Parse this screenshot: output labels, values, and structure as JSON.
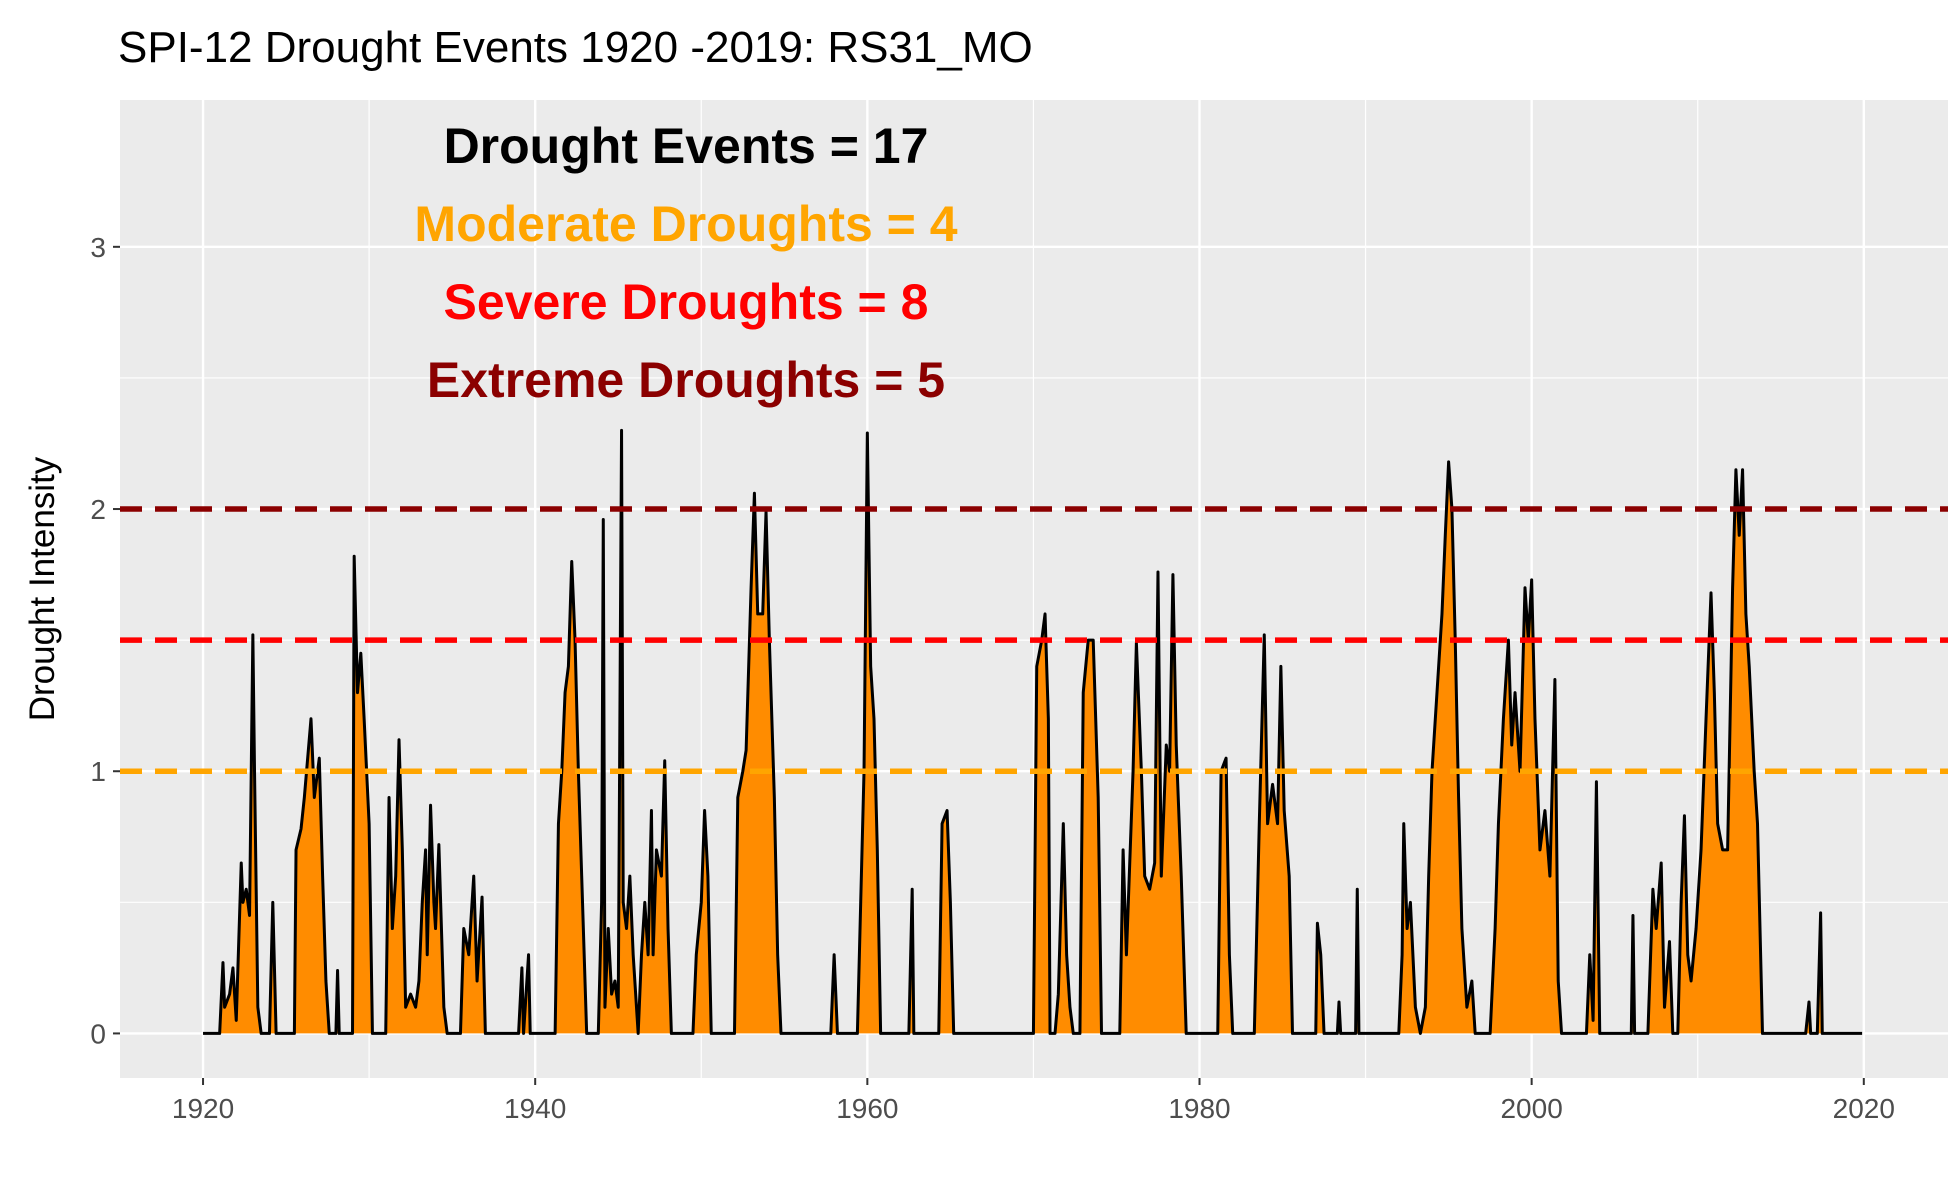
{
  "chart_data": {
    "type": "area",
    "title": "SPI-12 Drought Events 1920 -2019: RS31_MO",
    "y_label": "Drought Intensity",
    "annotations": [
      {
        "text": "Drought Events = 17",
        "color": "#000000"
      },
      {
        "text": "Moderate Droughts = 4",
        "color": "#ffa500"
      },
      {
        "text": "Severe Droughts = 8",
        "color": "#ff0000"
      },
      {
        "text": "Extreme Droughts = 5",
        "color": "#8b0000"
      }
    ],
    "thresholds": [
      {
        "value": 1,
        "color": "#ffa500"
      },
      {
        "value": 1.5,
        "color": "#ff0000"
      },
      {
        "value": 2,
        "color": "#8b0000"
      }
    ],
    "xlim": [
      1915,
      2025.07
    ],
    "ylim": [
      -0.17,
      3.56
    ],
    "xticks": [
      1920,
      1940,
      1960,
      1980,
      2000,
      2020
    ],
    "yticks": [
      0,
      1,
      2,
      3
    ],
    "xminorticks": [
      1930,
      1950,
      1970,
      1990,
      2010
    ],
    "yminorticks": [
      0.5,
      1.5,
      2.5
    ],
    "grid": true,
    "x": [
      1920.0,
      1921.0,
      1921.2,
      1921.3,
      1921.6,
      1921.8,
      1922.0,
      1922.1,
      1922.3,
      1922.4,
      1922.6,
      1922.8,
      1923.0,
      1923.1,
      1923.3,
      1923.5,
      1924.0,
      1924.2,
      1924.4,
      1925.5,
      1925.6,
      1925.9,
      1926.1,
      1926.3,
      1926.5,
      1926.7,
      1927.0,
      1927.2,
      1927.4,
      1927.6,
      1928.0,
      1928.1,
      1928.2,
      1929.0,
      1929.1,
      1929.3,
      1929.5,
      1929.7,
      1930.0,
      1930.2,
      1931.0,
      1931.2,
      1931.4,
      1931.6,
      1931.8,
      1932.0,
      1932.2,
      1932.5,
      1932.8,
      1933.0,
      1933.2,
      1933.4,
      1933.5,
      1933.7,
      1933.9,
      1934.0,
      1934.2,
      1934.5,
      1934.7,
      1935.5,
      1935.7,
      1936.0,
      1936.3,
      1936.5,
      1936.8,
      1937.0,
      1939.0,
      1939.2,
      1939.3,
      1939.6,
      1939.7,
      1941.2,
      1941.4,
      1941.6,
      1941.8,
      1942.0,
      1942.2,
      1942.4,
      1942.6,
      1942.8,
      1943.1,
      1943.8,
      1944.0,
      1944.1,
      1944.2,
      1944.4,
      1944.6,
      1944.8,
      1945.0,
      1945.2,
      1945.3,
      1945.5,
      1945.7,
      1945.9,
      1946.2,
      1946.4,
      1946.6,
      1946.8,
      1947.0,
      1947.1,
      1947.3,
      1947.6,
      1947.8,
      1948.0,
      1948.2,
      1949.5,
      1949.7,
      1950.0,
      1950.2,
      1950.4,
      1950.6,
      1952.0,
      1952.2,
      1952.5,
      1952.7,
      1953.0,
      1953.2,
      1953.4,
      1953.7,
      1953.9,
      1954.1,
      1954.4,
      1954.6,
      1954.8,
      1957.8,
      1958.0,
      1958.2,
      1959.4,
      1959.6,
      1959.8,
      1960.0,
      1960.2,
      1960.4,
      1960.6,
      1960.8,
      1962.5,
      1962.7,
      1962.8,
      1964.3,
      1964.5,
      1964.8,
      1965.0,
      1965.2,
      1970.0,
      1970.2,
      1970.5,
      1970.7,
      1970.9,
      1971.0,
      1971.3,
      1971.5,
      1971.8,
      1972.0,
      1972.2,
      1972.4,
      1972.8,
      1973.0,
      1973.3,
      1973.6,
      1973.9,
      1974.1,
      1975.2,
      1975.4,
      1975.6,
      1976.0,
      1976.2,
      1976.5,
      1976.7,
      1977.0,
      1977.3,
      1977.5,
      1977.7,
      1978.0,
      1978.2,
      1978.4,
      1978.6,
      1978.9,
      1979.2,
      1981.1,
      1981.3,
      1981.6,
      1981.8,
      1982.0,
      1983.3,
      1983.6,
      1983.9,
      1984.1,
      1984.4,
      1984.7,
      1984.9,
      1985.1,
      1985.4,
      1985.6,
      1987.0,
      1987.1,
      1987.3,
      1987.5,
      1988.3,
      1988.4,
      1988.5,
      1989.4,
      1989.5,
      1989.6,
      1992.0,
      1992.2,
      1992.3,
      1992.5,
      1992.7,
      1993.0,
      1993.3,
      1993.6,
      1993.8,
      1994.0,
      1994.3,
      1994.6,
      1994.8,
      1995.0,
      1995.2,
      1995.4,
      1995.6,
      1995.8,
      1996.1,
      1996.4,
      1996.6,
      1997.5,
      1997.8,
      1998.0,
      1998.3,
      1998.6,
      1998.8,
      1999.0,
      1999.3,
      1999.6,
      1999.8,
      2000.0,
      2000.2,
      2000.5,
      2000.8,
      2001.1,
      2001.4,
      2001.6,
      2001.8,
      2003.3,
      2003.5,
      2003.7,
      2003.9,
      2004.1,
      2006.0,
      2006.1,
      2006.2,
      2007.0,
      2007.3,
      2007.5,
      2007.8,
      2008.0,
      2008.3,
      2008.5,
      2008.8,
      2009.0,
      2009.2,
      2009.4,
      2009.6,
      2009.9,
      2010.2,
      2010.5,
      2010.8,
      2011.0,
      2011.2,
      2011.5,
      2011.8,
      2012.1,
      2012.3,
      2012.5,
      2012.7,
      2012.9,
      2013.1,
      2013.4,
      2013.6,
      2013.9,
      2016.5,
      2016.7,
      2016.8,
      2017.2,
      2017.4,
      2017.5,
      2019.9
    ],
    "series": [
      {
        "fill": "#ff8c00",
        "color": "#000000",
        "values": [
          0,
          0,
          0.27,
          0.1,
          0.15,
          0.25,
          0.05,
          0.25,
          0.65,
          0.5,
          0.55,
          0.45,
          1.52,
          1.0,
          0.1,
          0,
          0,
          0.5,
          0,
          0,
          0.7,
          0.78,
          0.9,
          1.05,
          1.2,
          0.9,
          1.05,
          0.6,
          0.2,
          0,
          0,
          0.24,
          0,
          0,
          1.82,
          1.3,
          1.45,
          1.2,
          0.8,
          0,
          0,
          0.9,
          0.4,
          0.6,
          1.12,
          0.7,
          0.1,
          0.15,
          0.1,
          0.2,
          0.5,
          0.7,
          0.3,
          0.87,
          0.5,
          0.4,
          0.72,
          0.1,
          0,
          0,
          0.4,
          0.3,
          0.6,
          0.2,
          0.52,
          0,
          0,
          0.25,
          0,
          0.3,
          0,
          0,
          0.8,
          1.0,
          1.3,
          1.4,
          1.8,
          1.5,
          1.0,
          0.6,
          0,
          0,
          0.5,
          1.96,
          0.1,
          0.4,
          0.15,
          0.2,
          0.1,
          2.3,
          0.5,
          0.4,
          0.6,
          0.3,
          0,
          0.3,
          0.5,
          0.3,
          0.85,
          0.3,
          0.7,
          0.6,
          1.04,
          0.4,
          0,
          0,
          0.3,
          0.5,
          0.85,
          0.6,
          0,
          0,
          0.9,
          1.0,
          1.08,
          1.7,
          2.06,
          1.6,
          1.6,
          1.99,
          1.5,
          0.9,
          0.3,
          0,
          0,
          0.3,
          0,
          0,
          0.5,
          1.0,
          2.29,
          1.4,
          1.2,
          0.7,
          0,
          0,
          0.55,
          0,
          0,
          0.8,
          0.85,
          0.5,
          0,
          0,
          1.4,
          1.5,
          1.6,
          1.2,
          0,
          0,
          0.15,
          0.8,
          0.3,
          0.1,
          0,
          0,
          1.3,
          1.5,
          1.5,
          0.9,
          0,
          0,
          0.7,
          0.3,
          1.0,
          1.49,
          1.0,
          0.6,
          0.55,
          0.65,
          1.76,
          0.6,
          1.1,
          1.0,
          1.75,
          1.1,
          0.6,
          0,
          0,
          1.0,
          1.05,
          0.3,
          0,
          0,
          0.8,
          1.52,
          0.8,
          0.95,
          0.8,
          1.4,
          0.85,
          0.6,
          0,
          0,
          0.42,
          0.3,
          0,
          0,
          0.12,
          0,
          0,
          0.55,
          0,
          0,
          0.3,
          0.8,
          0.4,
          0.5,
          0.1,
          0,
          0.1,
          0.6,
          1.0,
          1.3,
          1.6,
          1.9,
          2.18,
          2.0,
          1.5,
          0.9,
          0.4,
          0.1,
          0.2,
          0,
          0,
          0.4,
          0.8,
          1.2,
          1.5,
          1.1,
          1.3,
          1.0,
          1.7,
          1.5,
          1.73,
          1.2,
          0.7,
          0.85,
          0.6,
          1.35,
          0.2,
          0,
          0,
          0.3,
          0.05,
          0.96,
          0,
          0,
          0.45,
          0,
          0,
          0.55,
          0.4,
          0.65,
          0.1,
          0.35,
          0,
          0,
          0.5,
          0.83,
          0.3,
          0.2,
          0.4,
          0.7,
          1.2,
          1.68,
          1.3,
          0.8,
          0.7,
          0.7,
          1.7,
          2.15,
          1.9,
          2.15,
          1.6,
          1.4,
          1.0,
          0.8,
          0,
          0,
          0.12,
          0,
          0,
          0.46,
          0,
          0
        ]
      }
    ]
  }
}
